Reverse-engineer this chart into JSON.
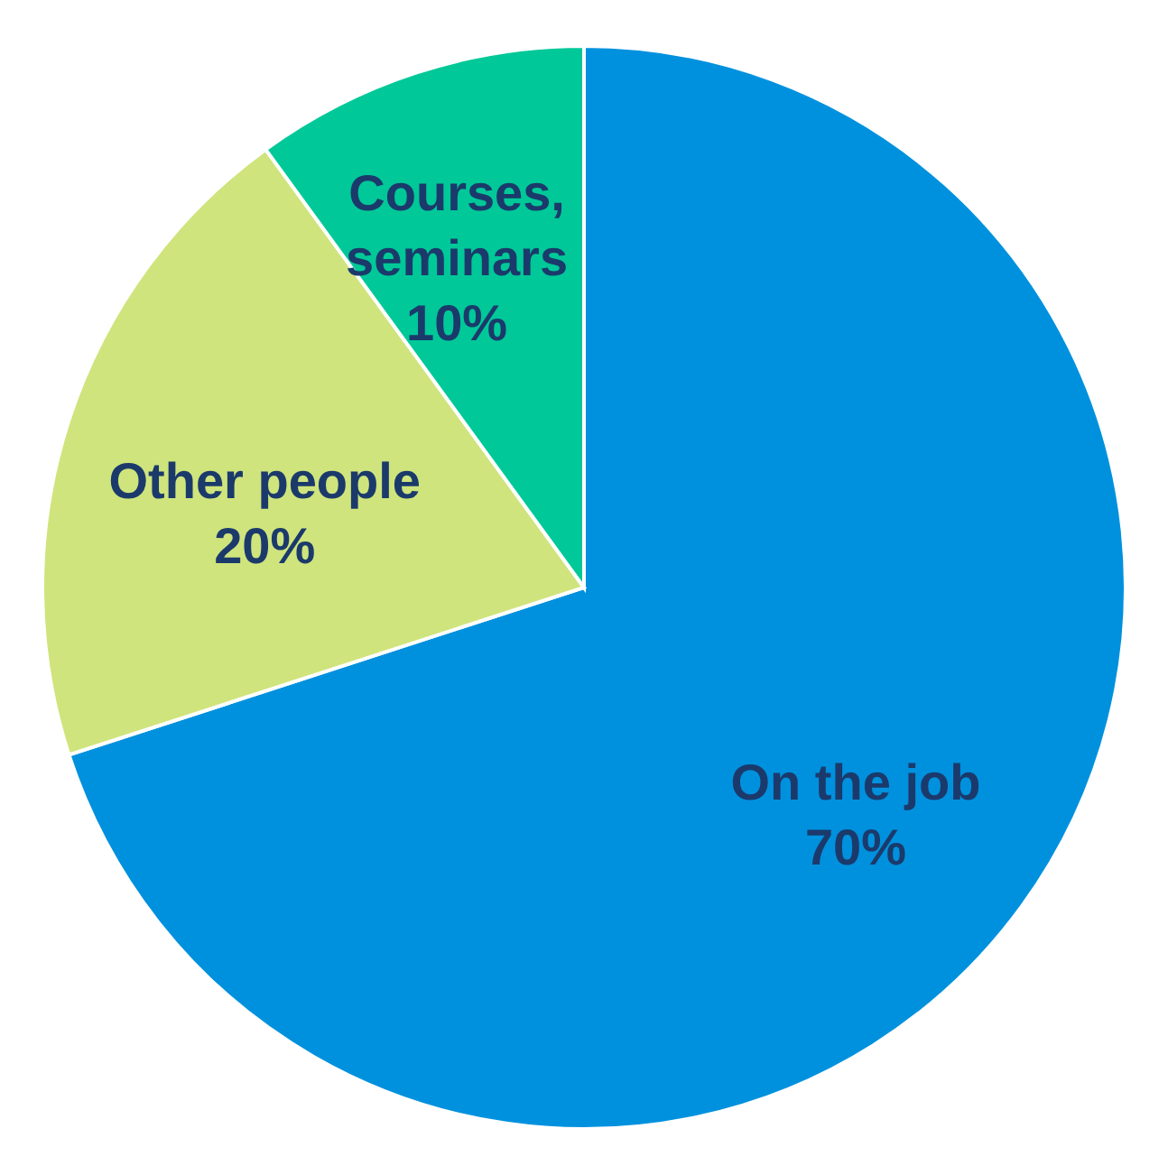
{
  "chart_data": {
    "type": "pie",
    "categories": [
      "On the job",
      "Other people",
      "Courses, seminars"
    ],
    "values": [
      70,
      20,
      10
    ],
    "value_labels": [
      "70%",
      "20%",
      "10%"
    ],
    "colors": [
      "#0091de",
      "#cfe47c",
      "#00c898"
    ]
  }
}
